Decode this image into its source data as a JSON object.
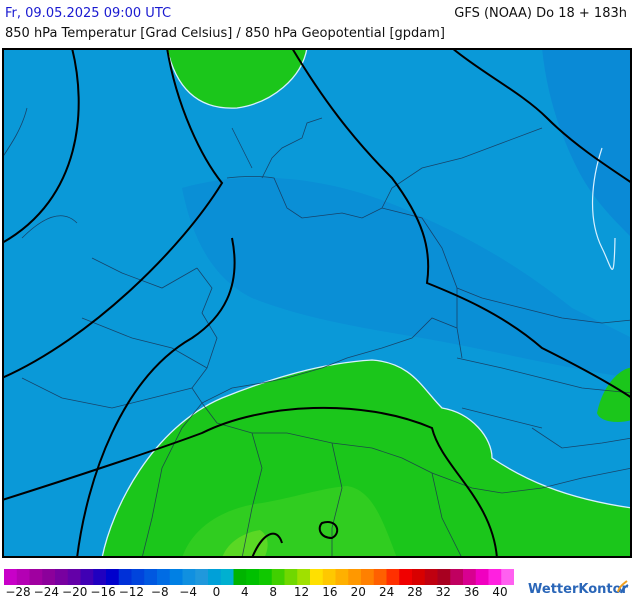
{
  "header": {
    "date": "Fr, 09.05.2025 09:00 UTC",
    "model": "GFS (NOAA) Do 18 + 183h",
    "subtitle": "850 hPa Temperatur [Grad Celsius] / 850 hPa Geopotential [gpdam]"
  },
  "legend": {
    "labels": [
      "−28",
      "−24",
      "−20",
      "−16",
      "−12",
      "−8",
      "−4",
      "0",
      "4",
      "8",
      "12",
      "16",
      "20",
      "24",
      "28",
      "32",
      "36",
      "40"
    ],
    "colors": [
      "#c800c8",
      "#b400b4",
      "#a000a0",
      "#8c009b",
      "#7800a0",
      "#6400a8",
      "#4000b4",
      "#2000c0",
      "#0000cc",
      "#0030d8",
      "#0044dc",
      "#0058e0",
      "#006ce4",
      "#0080e4",
      "#1090e0",
      "#2098dc",
      "#00a0d8",
      "#00b0d0",
      "#00b400",
      "#00c000",
      "#10c800",
      "#40d000",
      "#70d800",
      "#a0e000",
      "#ffe000",
      "#ffc800",
      "#ffb000",
      "#ff9800",
      "#ff8000",
      "#ff6000",
      "#ff3000",
      "#f00000",
      "#d80000",
      "#c00010",
      "#a80020",
      "#c00060",
      "#d80090",
      "#f000c0",
      "#ff20e0",
      "#ff60f0"
    ]
  },
  "brand": {
    "name": "WetterKontor"
  },
  "map": {
    "colors": {
      "cold": "#0a99d8",
      "colder": "#0a8ad6",
      "green": "#1bc61b",
      "green_light": "#4bd824",
      "isoline": "#000000",
      "temp_line": "#d8f0ff",
      "border": "#1a3050"
    }
  }
}
